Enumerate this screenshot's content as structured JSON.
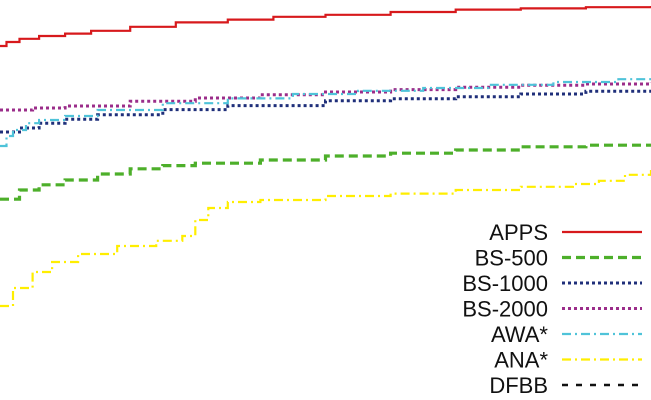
{
  "chart_data": {
    "type": "line",
    "title": "",
    "xlabel": "",
    "ylabel": "",
    "xlim": [
      0,
      100
    ],
    "ylim": [
      0,
      100
    ],
    "grid": false,
    "legend_position": "bottom-right",
    "series": [
      {
        "name": "APPS",
        "color": "#d7191c",
        "dash": "solid",
        "x": [
          0,
          1,
          3,
          6,
          10,
          14,
          20,
          27,
          35,
          42,
          50,
          60,
          70,
          80,
          90,
          100
        ],
        "y": [
          88.5,
          89.5,
          90.3,
          91.0,
          91.6,
          92.3,
          93.3,
          94.4,
          95.1,
          95.8,
          96.3,
          97.0,
          97.6,
          97.9,
          98.2,
          98.5
        ]
      },
      {
        "name": "BS-500",
        "color": "#4daf2a",
        "dash": "dashed",
        "x": [
          0,
          3,
          6,
          10,
          15,
          20,
          25,
          30,
          40,
          50,
          60,
          70,
          80,
          90,
          100
        ],
        "y": [
          50.2,
          52.5,
          53.8,
          55.0,
          56.5,
          57.8,
          58.6,
          59.2,
          60.0,
          61.0,
          61.7,
          62.5,
          63.3,
          63.7,
          64.0
        ]
      },
      {
        "name": "BS-1000",
        "color": "#1f2f7a",
        "dash": "dotted",
        "x": [
          0,
          3,
          6,
          10,
          15,
          25,
          35,
          50,
          60,
          70,
          80,
          90,
          100
        ],
        "y": [
          67.0,
          68.0,
          69.2,
          70.2,
          71.3,
          72.6,
          73.6,
          74.8,
          75.3,
          75.8,
          76.5,
          77.2,
          77.7
        ]
      },
      {
        "name": "BS-2000",
        "color": "#9b2d8a",
        "dash": "dotted",
        "x": [
          0,
          5,
          10,
          20,
          30,
          40,
          50,
          60,
          70,
          80,
          90,
          100
        ],
        "y": [
          72.5,
          73.0,
          73.5,
          74.7,
          75.5,
          76.3,
          77.0,
          77.6,
          78.2,
          78.7,
          79.0,
          79.3
        ]
      },
      {
        "name": "AWA*",
        "color": "#4fc3d9",
        "dash": "dashdot",
        "x": [
          0,
          1,
          2,
          4,
          6,
          10,
          15,
          25,
          35,
          45,
          55,
          65,
          75,
          85,
          95,
          100
        ],
        "y": [
          63.5,
          66.0,
          67.5,
          69.2,
          70.0,
          71.0,
          72.5,
          74.2,
          75.4,
          76.5,
          77.3,
          78.0,
          78.8,
          79.5,
          80.2,
          80.6
        ]
      },
      {
        "name": "ANA*",
        "color": "#ffee00",
        "dash": "dashdot",
        "x": [
          0,
          2,
          5,
          8,
          12,
          18,
          24,
          28,
          30,
          32,
          35,
          40,
          50,
          60,
          70,
          80,
          88,
          92,
          96,
          100
        ],
        "y": [
          23.5,
          28.0,
          32.0,
          34.5,
          36.5,
          38.5,
          39.8,
          41.0,
          45.0,
          48.0,
          49.5,
          50.0,
          51.0,
          51.6,
          52.5,
          53.3,
          54.0,
          54.8,
          56.3,
          57.5
        ]
      },
      {
        "name": "DFBB",
        "color": "#111111",
        "dash": "dashed-wide",
        "x": [],
        "y": []
      }
    ]
  }
}
